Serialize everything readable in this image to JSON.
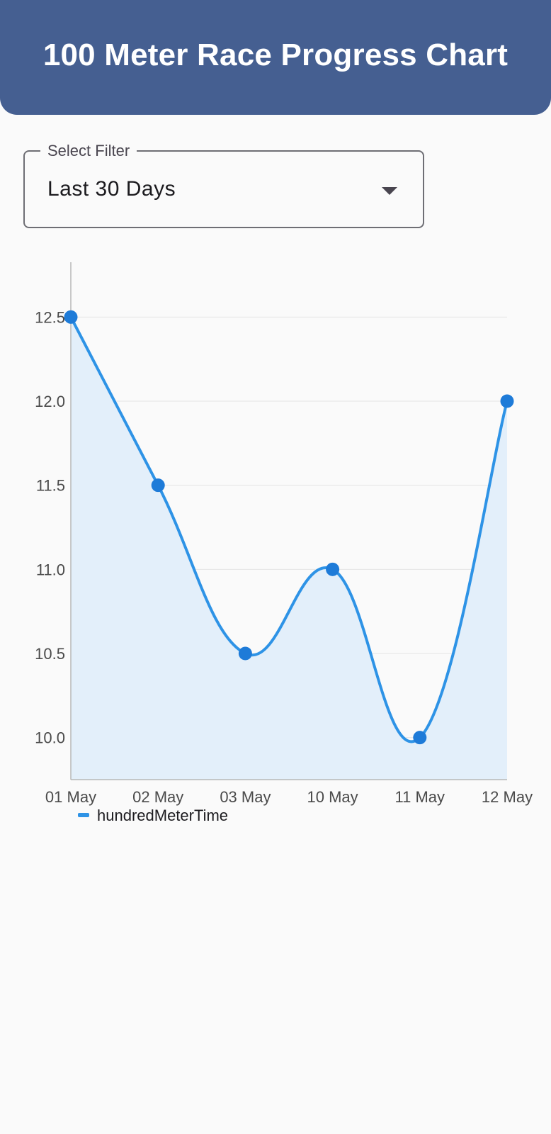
{
  "header": {
    "title": "100 Meter Race Progress Chart"
  },
  "filter": {
    "label": "Select Filter",
    "value": "Last 30 Days"
  },
  "colors": {
    "header_bg": "#455f91",
    "line": "#2e93e6",
    "points": "#1e7bd8",
    "area": "#e3effa",
    "grid": "#e4e4e4"
  },
  "chart_data": {
    "type": "line",
    "smooth": true,
    "area_fill": true,
    "categories": [
      "01 May",
      "02 May",
      "03 May",
      "10 May",
      "11 May",
      "12 May"
    ],
    "series": [
      {
        "name": "hundredMeterTime",
        "values": [
          12.5,
          11.5,
          10.5,
          11.0,
          10.0,
          12.0
        ]
      }
    ],
    "yticks": [
      "10.0",
      "10.5",
      "11.0",
      "11.5",
      "12.0",
      "12.5"
    ],
    "ylim": [
      9.75,
      12.75
    ],
    "grid": true,
    "legend": "bottom-left"
  }
}
